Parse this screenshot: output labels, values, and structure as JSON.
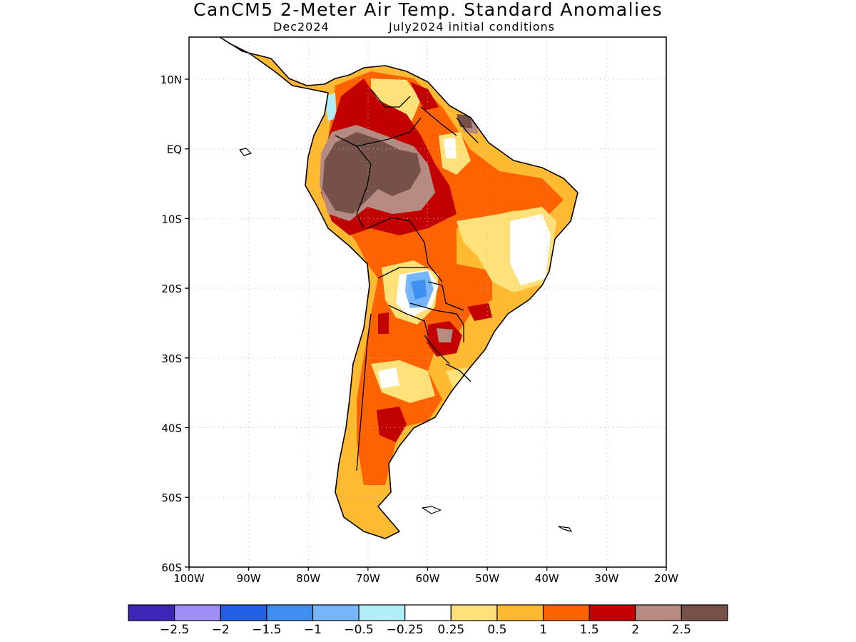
{
  "title": "CanCM5 2-Meter Air Temp. Standard Anomalies",
  "subtitle_left": "Dec2024",
  "subtitle_right": "July2024 initial conditions",
  "lat_ticks": [
    "10N",
    "EQ",
    "10S",
    "20S",
    "30S",
    "40S",
    "50S",
    "60S"
  ],
  "lon_ticks": [
    "100W",
    "90W",
    "80W",
    "70W",
    "60W",
    "50W",
    "40W",
    "30W",
    "20W"
  ],
  "colorbar": {
    "colors": [
      "#3b26b8",
      "#9f8ef5",
      "#2160e6",
      "#3d8ff0",
      "#76b5f7",
      "#b2eef7",
      "#ffffff",
      "#ffe17a",
      "#ffba32",
      "#ff6200",
      "#c20000",
      "#b58a80",
      "#76514a"
    ],
    "labels": [
      "−2.5",
      "−2",
      "−1.5",
      "−1",
      "−0.5",
      "−0.25",
      "0.25",
      "0.5",
      "1",
      "1.5",
      "2",
      "2.5"
    ]
  },
  "map": {
    "region": "South America",
    "field": "2-meter air temperature standardized anomaly"
  }
}
